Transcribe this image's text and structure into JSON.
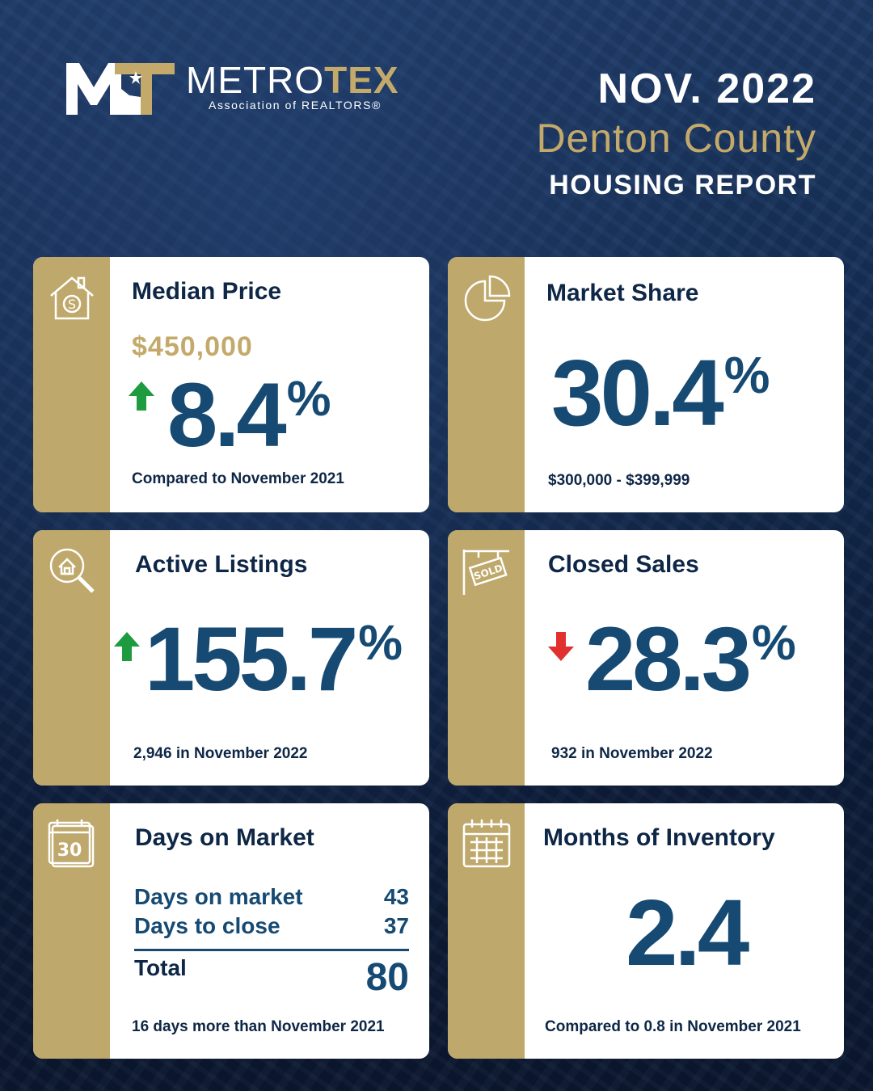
{
  "brand": {
    "name_left": "METRO",
    "name_right": "TEX",
    "subtitle": "Association of REALTORS®"
  },
  "header": {
    "month": "NOV. 2022",
    "county": "Denton County",
    "report": "HOUSING REPORT"
  },
  "colors": {
    "navy": "#0f2140",
    "gold": "#bfa86b",
    "value_blue": "#164a73",
    "up_green": "#1e9b3e",
    "down_red": "#e0312f"
  },
  "cards": {
    "median_price": {
      "title": "Median Price",
      "price": "$450,000",
      "change": "8.4",
      "pct": "%",
      "direction": "up",
      "foot": "Compared to November 2021",
      "icon": "house-dollar-icon"
    },
    "market_share": {
      "title": "Market Share",
      "value": "30.4",
      "pct": "%",
      "foot": "$300,000 - $399,999",
      "icon": "pie-chart-icon"
    },
    "active_listings": {
      "title": "Active Listings",
      "change": "155.7",
      "pct": "%",
      "direction": "up",
      "foot": "2,946 in November 2022",
      "icon": "house-magnifier-icon"
    },
    "closed_sales": {
      "title": "Closed Sales",
      "change": "28.3",
      "pct": "%",
      "direction": "down",
      "foot": "932 in November 2022",
      "icon": "sold-sign-icon",
      "icon_text": "SOLD"
    },
    "days_on_market": {
      "title": "Days on Market",
      "rows": [
        {
          "label": "Days on market",
          "value": "43"
        },
        {
          "label": "Days to close",
          "value": "37"
        }
      ],
      "total_label": "Total",
      "total_value": "80",
      "foot": "16 days more than November 2021",
      "icon": "calendar-30-icon",
      "icon_text": "30"
    },
    "months_inventory": {
      "title": "Months of Inventory",
      "value": "2.4",
      "foot": "Compared to 0.8 in November 2021",
      "icon": "calendar-grid-icon"
    }
  }
}
